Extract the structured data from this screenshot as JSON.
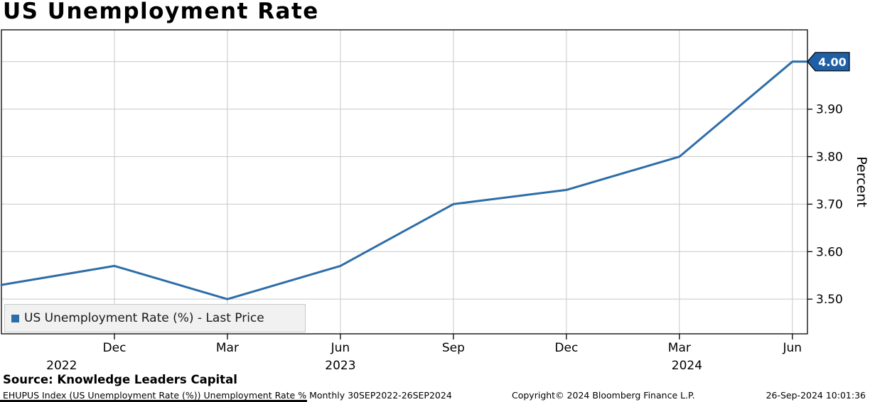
{
  "title": "US Unemployment Rate",
  "chart_data": {
    "type": "line",
    "title": "US Unemployment Rate",
    "ylabel": "Percent",
    "xlabel": "",
    "grid": true,
    "legend_position": "bottom-left",
    "x_unit": "months from Sep-2022",
    "xlim": [
      0,
      21.4
    ],
    "ylim": [
      3.427,
      4.067
    ],
    "yticks": [
      3.5,
      3.6,
      3.7,
      3.8,
      3.9,
      4.0
    ],
    "xticks": [
      {
        "m": 3,
        "label": "Dec"
      },
      {
        "m": 6,
        "label": "Mar"
      },
      {
        "m": 9,
        "label": "Jun"
      },
      {
        "m": 12,
        "label": "Sep"
      },
      {
        "m": 15,
        "label": "Dec"
      },
      {
        "m": 18,
        "label": "Mar"
      },
      {
        "m": 21,
        "label": "Jun"
      }
    ],
    "year_labels": [
      {
        "m": 1.6,
        "label": "2022"
      },
      {
        "m": 9.0,
        "label": "2023"
      },
      {
        "m": 18.2,
        "label": "2024"
      }
    ],
    "series": [
      {
        "name": "US Unemployment Rate (%) - Last Price",
        "color": "#2d6da8",
        "points": [
          {
            "x": "Sep-2022",
            "m": 0,
            "v": 3.53
          },
          {
            "x": "Dec-2022",
            "m": 3,
            "v": 3.57
          },
          {
            "x": "Mar-2023",
            "m": 6,
            "v": 3.5
          },
          {
            "x": "Jun-2023",
            "m": 9,
            "v": 3.57
          },
          {
            "x": "Sep-2023",
            "m": 12,
            "v": 3.7
          },
          {
            "x": "Dec-2023",
            "m": 15,
            "v": 3.73
          },
          {
            "x": "Mar-2024",
            "m": 18,
            "v": 3.8
          },
          {
            "x": "Jun-2024",
            "m": 21,
            "v": 4.0
          },
          {
            "x": "edge",
            "m": 21.4,
            "v": 4.0
          }
        ]
      }
    ],
    "last_price": {
      "label": "4.00",
      "value": 4.0
    },
    "legend": {
      "label": "US Unemployment Rate (%) - Last Price"
    }
  },
  "footer": {
    "source": "Source: Knowledge Leaders Capital",
    "meta_left": "EHUPUS Index (US Unemployment Rate (%)) Unemployment Rate %  Monthly 30SEP2022-26SEP2024",
    "copyright": "Copyright© 2024 Bloomberg Finance L.P.",
    "timestamp": "26-Sep-2024 10:01:36"
  },
  "colors": {
    "line": "#2d6da8",
    "marker_bg": "#1f5fa5",
    "marker_text": "#ffffff",
    "grid": "#c8c8c8",
    "axis": "#000000",
    "legend_bg": "#f1f1f1",
    "legend_border": "#c9c9c9"
  }
}
